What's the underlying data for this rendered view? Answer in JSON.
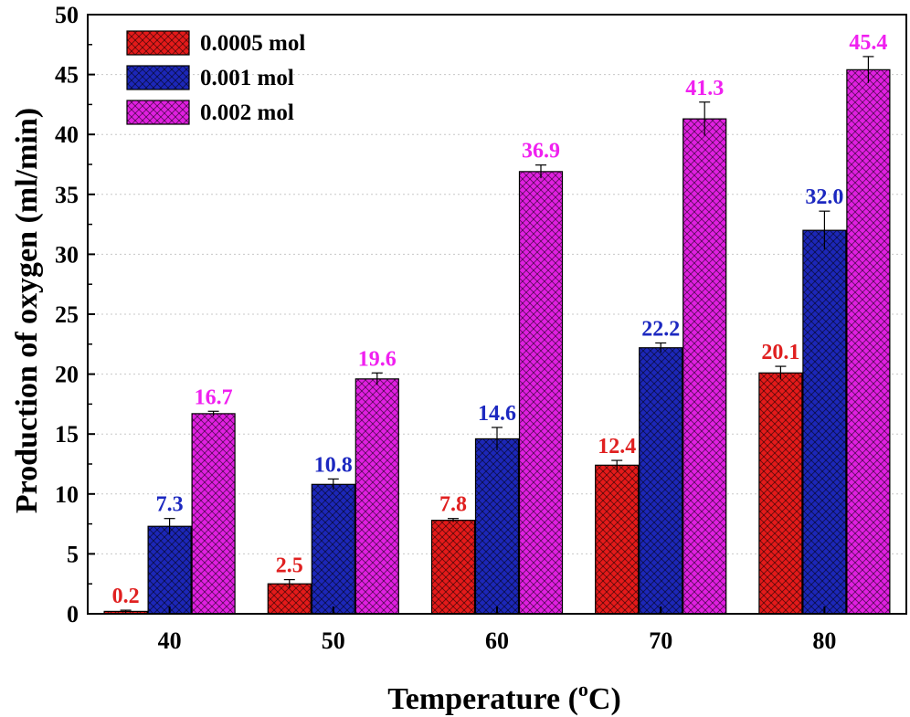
{
  "chart_data": {
    "type": "bar",
    "title": "",
    "xlabel": "Temperature (",
    "xlabel_sup": "o",
    "xlabel_end": "C)",
    "ylabel": "Production of oxygen (ml/min)",
    "categories": [
      "40",
      "50",
      "60",
      "70",
      "80"
    ],
    "ylim": [
      0,
      50
    ],
    "yticks": [
      0,
      5,
      10,
      15,
      20,
      25,
      30,
      35,
      40,
      45,
      50
    ],
    "ytick_labels": [
      "0",
      "5",
      "10",
      "15",
      "20",
      "25",
      "30",
      "35",
      "40",
      "45",
      "50"
    ],
    "grid": "horizontal dotted",
    "legend_position": "top-left",
    "series": [
      {
        "name": "0.0005 mol",
        "color": "#e41a1a",
        "label_color": "#e02020",
        "values": [
          0.2,
          2.5,
          7.8,
          12.4,
          20.1
        ],
        "labels": [
          "0.2",
          "2.5",
          "7.8",
          "12.4",
          "20.1"
        ],
        "errors": [
          0.1,
          0.35,
          0.15,
          0.4,
          0.55
        ]
      },
      {
        "name": "0.001 mol",
        "color": "#1c27b8",
        "label_color": "#1c28c0",
        "values": [
          7.3,
          10.8,
          14.6,
          22.2,
          32.0
        ],
        "labels": [
          "7.3",
          "10.8",
          "14.6",
          "22.2",
          "32.0"
        ],
        "errors": [
          0.65,
          0.45,
          0.95,
          0.4,
          1.6
        ]
      },
      {
        "name": "0.002 mol",
        "color": "#e020e0",
        "label_color": "#f020f0",
        "values": [
          16.7,
          19.6,
          36.9,
          41.3,
          45.4
        ],
        "labels": [
          "16.7",
          "19.6",
          "36.9",
          "41.3",
          "45.4"
        ],
        "errors": [
          0.2,
          0.5,
          0.55,
          1.4,
          1.1
        ]
      }
    ]
  }
}
